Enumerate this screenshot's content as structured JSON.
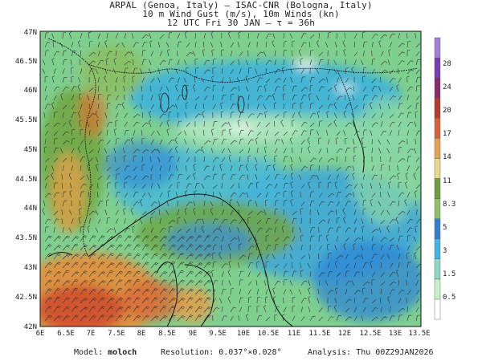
{
  "header": {
    "line1": "ARPAL (Genoa, Italy)  —  ISAC-CNR (Bologna, Italy)",
    "line2": "10 m Wind Gust (m/s), 10m Winds (kn)",
    "line3": "12 UTC Fri 30 JAN  —  τ = 36h"
  },
  "axes": {
    "lat_labels": [
      "42N",
      "42.5N",
      "43N",
      "43.5N",
      "44N",
      "44.5N",
      "45N",
      "45.5N",
      "46N",
      "46.5N",
      "47N"
    ],
    "lon_labels": [
      "6E",
      "6.5E",
      "7E",
      "7.5E",
      "8E",
      "8.5E",
      "9E",
      "9.5E",
      "10E",
      "10.5E",
      "11E",
      "11.5E",
      "12E",
      "12.5E",
      "13E",
      "13.5E"
    ]
  },
  "colorbar": {
    "labels": [
      "0.5",
      "1.5",
      "3",
      "5",
      "8.3",
      "11",
      "14",
      "17",
      "20",
      "24",
      "28"
    ],
    "colors": [
      "#ffffff",
      "#c8f0c8",
      "#8ed7c4",
      "#3cb7e6",
      "#2f7fd8",
      "#8fbf6a",
      "#6e9e3a",
      "#e6d98a",
      "#e6a050",
      "#d9603a",
      "#b83a2a",
      "#8a2a6a",
      "#7a3ab8",
      "#a080d8"
    ]
  },
  "footer": {
    "model_label": "Model:",
    "model_value": "moloch",
    "resolution_label": "Resolution:",
    "resolution_value": "0.037°×0.028°",
    "analysis_label": "Analysis:",
    "analysis_value": "Thu 00Z29JAN2026"
  }
}
